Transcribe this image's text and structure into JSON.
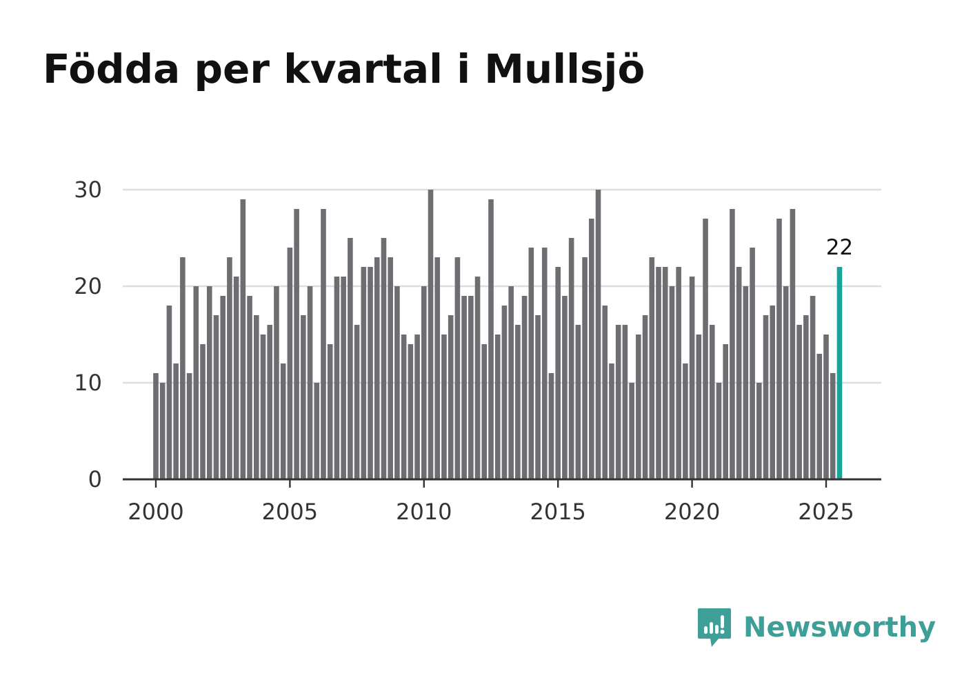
{
  "title": "Födda per kvartal i Mullsjö",
  "brand": {
    "name": "Newsworthy",
    "icon": "newsworthy-logo-icon",
    "color": "#3d9f97"
  },
  "chart_data": {
    "type": "bar",
    "title": "Födda per kvartal i Mullsjö",
    "xlabel": "",
    "ylabel": "",
    "x_start_year": 2000,
    "periods_per_year": 4,
    "values": [
      11,
      10,
      18,
      12,
      23,
      11,
      20,
      14,
      20,
      17,
      19,
      23,
      21,
      29,
      19,
      17,
      15,
      16,
      20,
      12,
      24,
      28,
      17,
      20,
      10,
      28,
      14,
      21,
      21,
      25,
      16,
      22,
      22,
      23,
      25,
      23,
      20,
      15,
      14,
      15,
      20,
      30,
      23,
      15,
      17,
      23,
      19,
      19,
      21,
      14,
      29,
      15,
      18,
      20,
      16,
      19,
      24,
      17,
      24,
      11,
      22,
      19,
      25,
      16,
      23,
      27,
      30,
      18,
      12,
      16,
      16,
      10,
      15,
      17,
      23,
      22,
      22,
      20,
      22,
      12,
      21,
      15,
      27,
      16,
      10,
      14,
      28,
      22,
      20,
      24,
      10,
      17,
      18,
      27,
      20,
      28,
      16,
      17,
      19,
      13,
      15,
      11,
      22
    ],
    "ylim": [
      0,
      30
    ],
    "yticks": [
      0,
      10,
      20,
      30
    ],
    "xticks": [
      2000,
      2005,
      2010,
      2015,
      2020,
      2025
    ],
    "grid": true,
    "highlight": {
      "index": 102,
      "label": "22"
    },
    "colors": {
      "bar": "#6e6d72",
      "highlight": "#1aa39a",
      "grid": "#dddddd",
      "axis": "#333333"
    }
  }
}
